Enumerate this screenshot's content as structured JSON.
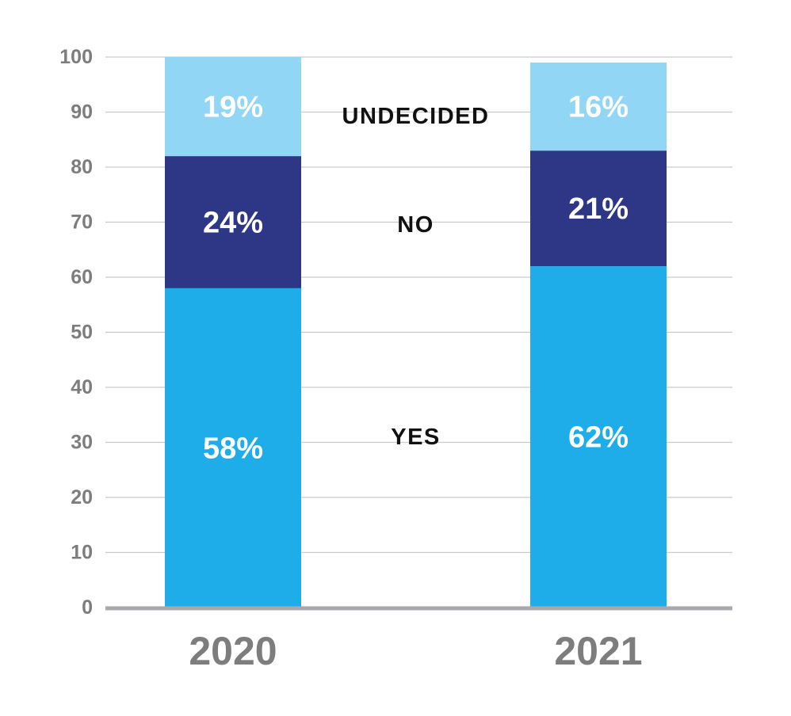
{
  "chart_data": {
    "type": "bar",
    "stacked": true,
    "categories": [
      "2020",
      "2021"
    ],
    "series": [
      {
        "name": "YES",
        "values": [
          58,
          62
        ],
        "labels": [
          "58%",
          "62%"
        ],
        "color": "#1fade9"
      },
      {
        "name": "NO",
        "values": [
          24,
          21
        ],
        "labels": [
          "24%",
          "21%"
        ],
        "color": "#2e3686"
      },
      {
        "name": "UNDECIDED",
        "values": [
          19,
          16
        ],
        "labels": [
          "19%",
          "16%"
        ],
        "color": "#92d6f5"
      }
    ],
    "yticks": [
      "0",
      "10",
      "20",
      "30",
      "40",
      "50",
      "60",
      "70",
      "80",
      "90",
      "100"
    ],
    "ylim": [
      0,
      100
    ],
    "grid": true,
    "legend": "between-bars",
    "title": "",
    "xlabel": "",
    "ylabel": ""
  },
  "colors": {
    "gridline": "#c9cacc",
    "baseline": "#a7a9ac",
    "tick_text": "#7d7d7d",
    "series_label_text": "#111111",
    "segment_label_text": "#ffffff"
  }
}
